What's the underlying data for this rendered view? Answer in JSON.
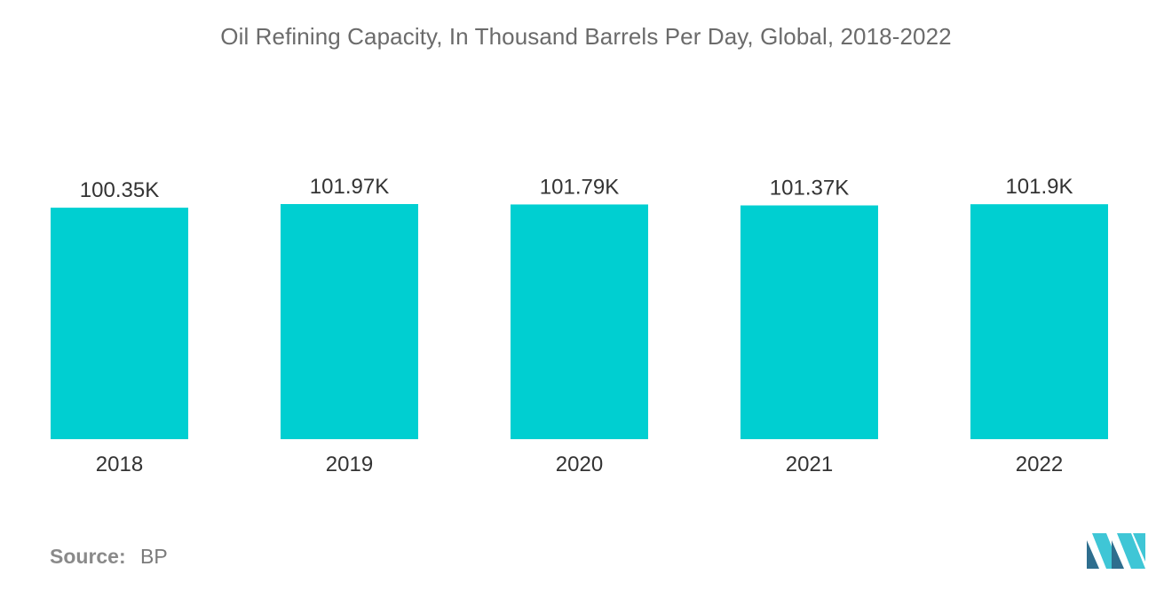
{
  "chart_data": {
    "type": "bar",
    "title": "Oil Refining Capacity, In Thousand Barrels Per Day, Global, 2018-2022",
    "categories": [
      "2018",
      "2019",
      "2020",
      "2021",
      "2022"
    ],
    "values": [
      100.35,
      101.97,
      101.79,
      101.37,
      101.9
    ],
    "value_labels": [
      "100.35K",
      "101.97K",
      "101.79K",
      "101.37K",
      "101.9K"
    ],
    "xlabel": "",
    "ylabel": "",
    "ylim": [
      0,
      104
    ],
    "grid": false,
    "legend": "none",
    "bar_color": "#00cfd1"
  },
  "source": {
    "label": "Source:",
    "value": "BP"
  },
  "colors": {
    "bar": "#00cfd1",
    "text": "#333333",
    "title": "#6b6b6b",
    "logo_dark": "#2e6e8e",
    "logo_light": "#3fc6d6"
  },
  "logo_icon": "mordor-intelligence-logo-icon"
}
